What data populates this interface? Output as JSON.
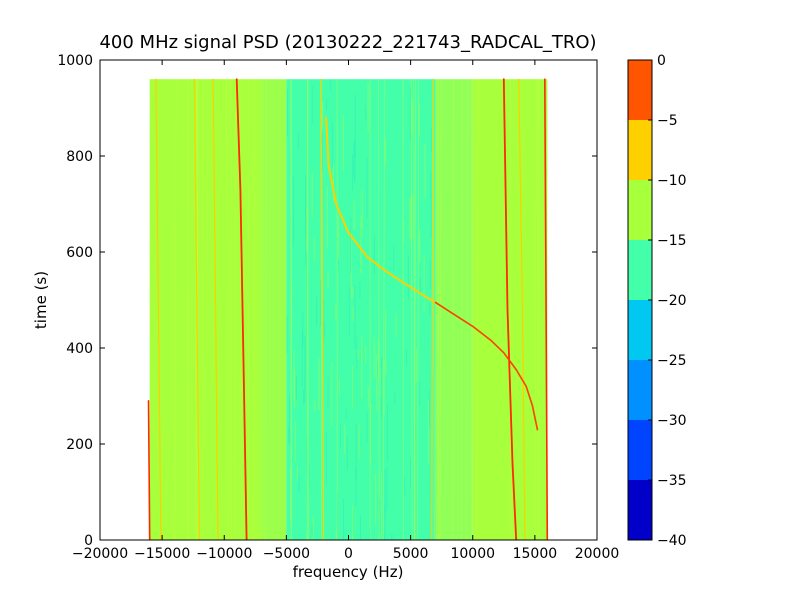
{
  "chart_data": {
    "type": "heatmap",
    "title": "400 MHz signal PSD (20130222_221743_RADCAL_TRO)",
    "xlabel": "frequency (Hz)",
    "ylabel": "time (s)",
    "xlim": [
      -20000,
      20000
    ],
    "ylim": [
      0,
      1000
    ],
    "x_ticks": [
      -20000,
      -15000,
      -10000,
      -5000,
      0,
      5000,
      10000,
      15000,
      20000
    ],
    "x_tick_labels": [
      "−20000",
      "−15000",
      "−10000",
      "−5000",
      "0",
      "5000",
      "10000",
      "15000",
      "20000"
    ],
    "y_ticks": [
      0,
      200,
      400,
      600,
      800,
      1000
    ],
    "y_tick_labels": [
      "0",
      "200",
      "400",
      "600",
      "800",
      "1000"
    ],
    "data_extent": {
      "x": [
        -16000,
        16000
      ],
      "y": [
        0,
        960
      ]
    },
    "colorbar": {
      "range": [
        -40,
        0
      ],
      "levels": [
        -40,
        -35,
        -30,
        -25,
        -20,
        -15,
        -10,
        -5,
        0
      ],
      "tick_labels": [
        "−40",
        "−35",
        "−30",
        "−25",
        "−20",
        "−15",
        "−10",
        "−5",
        "0"
      ],
      "colors": [
        "#0000c8",
        "#0044ff",
        "#0090ff",
        "#00c8f0",
        "#44ffaa",
        "#a8ff3c",
        "#ffd000",
        "#ff5500",
        "#c80000"
      ]
    },
    "background_bands": [
      {
        "x": [
          -16000,
          -7000
        ],
        "level": -17.5,
        "color": "#a8ff3c"
      },
      {
        "x": [
          -7000,
          -5000
        ],
        "level": -20,
        "color": "#9cff4c"
      },
      {
        "x": [
          -5000,
          7000
        ],
        "level": -22.5,
        "color": "#44ffaa"
      },
      {
        "x": [
          7000,
          10000
        ],
        "level": -20,
        "color": "#90ff58"
      },
      {
        "x": [
          10000,
          16000
        ],
        "level": -17.5,
        "color": "#a8ff3c"
      }
    ],
    "series": [
      {
        "color": "#ff2a00",
        "width": 1.6,
        "points": [
          [
            -16000,
            0
          ],
          [
            -16050,
            150
          ],
          [
            -16100,
            290
          ]
        ]
      },
      {
        "color": "#ffd000",
        "width": 1.2,
        "points": [
          [
            -15100,
            0
          ],
          [
            -15300,
            480
          ],
          [
            -15500,
            960
          ]
        ]
      },
      {
        "color": "#ffd000",
        "width": 1.2,
        "points": [
          [
            -12000,
            0
          ],
          [
            -12200,
            480
          ],
          [
            -12400,
            960
          ]
        ]
      },
      {
        "color": "#ffd000",
        "width": 1.2,
        "points": [
          [
            -10500,
            0
          ],
          [
            -10700,
            480
          ],
          [
            -10900,
            960
          ]
        ]
      },
      {
        "color": "#ff2a00",
        "width": 1.8,
        "points": [
          [
            -8200,
            0
          ],
          [
            -8400,
            300
          ],
          [
            -8700,
            730
          ],
          [
            -9000,
            960
          ]
        ]
      },
      {
        "color": "#ffd000",
        "width": 1.2,
        "points": [
          [
            -2000,
            0
          ],
          [
            -2100,
            480
          ],
          [
            -2200,
            960
          ]
        ]
      },
      {
        "color": "#ffd000",
        "width": 1.2,
        "points": [
          [
            6700,
            0
          ],
          [
            6750,
            480
          ],
          [
            6800,
            960
          ]
        ]
      },
      {
        "color": "#ff2a00",
        "width": 1.8,
        "points": [
          [
            13500,
            0
          ],
          [
            13200,
            160
          ],
          [
            12800,
            480
          ],
          [
            12500,
            960
          ]
        ]
      },
      {
        "color": "#ffd000",
        "width": 1.2,
        "points": [
          [
            14200,
            0
          ],
          [
            14000,
            480
          ],
          [
            13700,
            960
          ]
        ]
      },
      {
        "color": "#ff2a00",
        "width": 1.6,
        "points": [
          [
            16000,
            0
          ],
          [
            15900,
            480
          ],
          [
            15800,
            960
          ]
        ]
      },
      {
        "color": "#ffd000",
        "width": 2.0,
        "points": [
          [
            -1800,
            880
          ],
          [
            -1600,
            780
          ],
          [
            -1000,
            700
          ],
          [
            0,
            640
          ],
          [
            1500,
            590
          ],
          [
            3000,
            560
          ],
          [
            4500,
            535
          ],
          [
            6000,
            510
          ],
          [
            7000,
            495
          ]
        ]
      },
      {
        "color": "#ff4000",
        "width": 1.6,
        "points": [
          [
            7000,
            495
          ],
          [
            8500,
            470
          ],
          [
            10000,
            445
          ],
          [
            11500,
            415
          ],
          [
            12500,
            390
          ],
          [
            13500,
            355
          ],
          [
            14300,
            320
          ],
          [
            14800,
            280
          ],
          [
            15200,
            230
          ]
        ]
      }
    ]
  }
}
